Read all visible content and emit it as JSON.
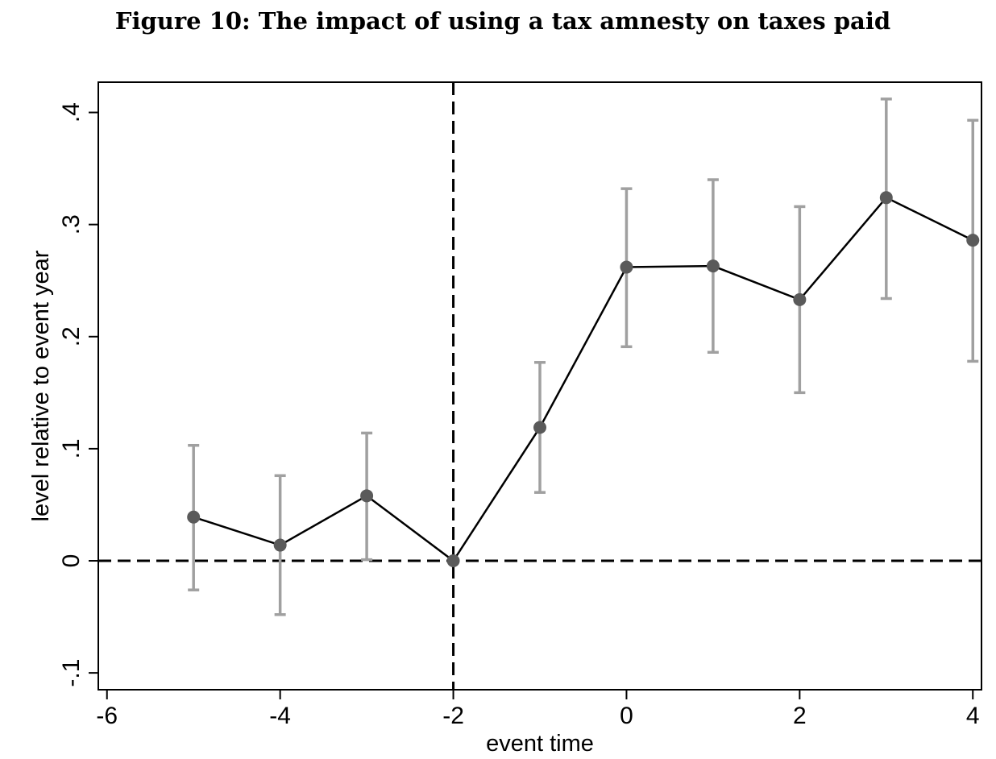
{
  "chart_data": {
    "type": "line",
    "title": "Figure 10: The impact of using a tax amnesty on taxes paid",
    "xlabel": "event time",
    "ylabel": "level relative to event year",
    "xlim": [
      -6.1,
      4.1
    ],
    "ylim": [
      -0.115,
      0.427
    ],
    "xticks": [
      -6,
      -4,
      -2,
      0,
      2,
      4
    ],
    "xtick_labels": [
      "-6",
      "-4",
      "-2",
      "0",
      "2",
      "4"
    ],
    "yticks": [
      -0.1,
      0,
      0.1,
      0.2,
      0.3,
      0.4
    ],
    "ytick_labels": [
      "-.1",
      "0",
      ".1",
      ".2",
      ".3",
      ".4"
    ],
    "grid": false,
    "reference_lines": {
      "x": -2,
      "y": 0,
      "style": "dashed"
    },
    "series": [
      {
        "x": [
          -5,
          -4,
          -3,
          -2,
          -1,
          0,
          1,
          2,
          3,
          4
        ],
        "y": [
          0.039,
          0.014,
          0.058,
          0.0,
          0.119,
          0.262,
          0.263,
          0.233,
          0.324,
          0.286
        ],
        "ci_low": [
          -0.026,
          -0.048,
          0.001,
          0.0,
          0.061,
          0.191,
          0.186,
          0.15,
          0.234,
          0.178
        ],
        "ci_high": [
          0.103,
          0.076,
          0.114,
          0.0,
          0.177,
          0.332,
          0.34,
          0.316,
          0.412,
          0.393
        ]
      }
    ],
    "colors": {
      "line": "#000000",
      "marker": "#5a5a5a",
      "errorbar": "#a0a0a0"
    }
  }
}
